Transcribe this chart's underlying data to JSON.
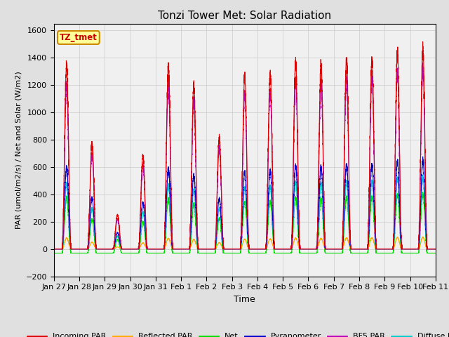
{
  "title": "Tonzi Tower Met: Solar Radiation",
  "xlabel": "Time",
  "ylabel": "PAR (umol/m2/s) / Net and Solar (W/m2)",
  "ylim": [
    -200,
    1650
  ],
  "yticks": [
    -200,
    0,
    200,
    400,
    600,
    800,
    1000,
    1200,
    1400,
    1600
  ],
  "annotation_text": "TZ_tmet",
  "annotation_color": "#cc0000",
  "annotation_bg": "#ffff99",
  "annotation_border": "#cc8800",
  "background_color": "#e0e0e0",
  "plot_bg": "#f0f0f0",
  "series": {
    "Incoming PAR": {
      "color": "#dd0000",
      "lw": 0.8
    },
    "Reflected PAR": {
      "color": "#ffaa00",
      "lw": 0.8
    },
    "Net": {
      "color": "#00dd00",
      "lw": 0.8
    },
    "Pyranometer": {
      "color": "#0000cc",
      "lw": 0.8
    },
    "BF5 PAR": {
      "color": "#bb00bb",
      "lw": 0.8
    },
    "Diffuse PAR": {
      "color": "#00cccc",
      "lw": 0.8
    }
  },
  "n_days": 15,
  "tick_labels": [
    "Jan 27",
    "Jan 28",
    "Jan 29",
    "Jan 30",
    "Jan 31",
    "Feb 1",
    "Feb 2",
    "Feb 3",
    "Feb 4",
    "Feb 5",
    "Feb 6",
    "Feb 7",
    "Feb 8",
    "Feb 9",
    "Feb 10",
    "Feb 11"
  ],
  "grid_color": "#cccccc",
  "day_peaks_par": [
    1350,
    780,
    250,
    680,
    1340,
    1200,
    820,
    1260,
    1280,
    1370,
    1350,
    1390,
    1390,
    1440,
    1460
  ],
  "day_peaks_bf5": [
    1200,
    700,
    220,
    610,
    1200,
    1080,
    740,
    1130,
    1150,
    1230,
    1210,
    1250,
    1250,
    1290,
    1310
  ],
  "day_peaks_pyr": [
    600,
    380,
    120,
    340,
    590,
    540,
    370,
    560,
    575,
    610,
    600,
    620,
    620,
    640,
    650
  ],
  "day_peaks_dif": [
    480,
    300,
    95,
    270,
    470,
    430,
    295,
    445,
    460,
    490,
    480,
    500,
    500,
    515,
    520
  ],
  "day_peaks_net": [
    380,
    220,
    70,
    200,
    370,
    330,
    225,
    340,
    350,
    375,
    370,
    385,
    385,
    395,
    400
  ],
  "day_peaks_ref": [
    80,
    50,
    15,
    45,
    78,
    70,
    47,
    72,
    74,
    80,
    78,
    82,
    82,
    85,
    86
  ]
}
